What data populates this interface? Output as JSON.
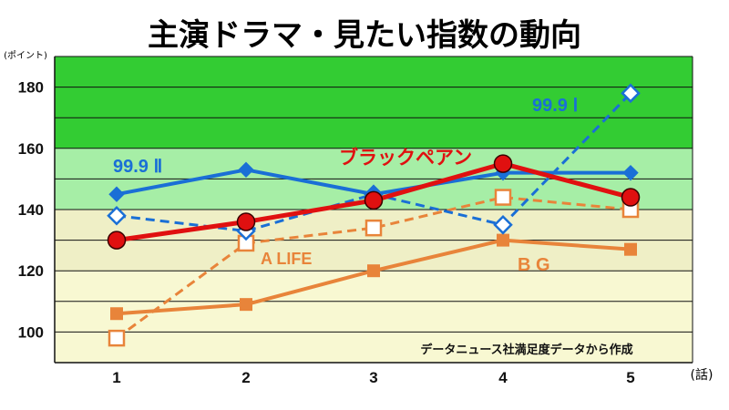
{
  "chart_data": {
    "type": "line",
    "title": "主演ドラマ・見たい指数の動向",
    "ylabel": "(ポイント)",
    "xlabel": "(話)",
    "note": "データニュース社満足度データから作成",
    "categories": [
      "1",
      "2",
      "3",
      "4",
      "5"
    ],
    "ylim": [
      90,
      190
    ],
    "yticks": [
      100,
      120,
      140,
      160,
      180
    ],
    "bands": [
      {
        "from": 160,
        "to": 190,
        "color": "#33cc33"
      },
      {
        "from": 140,
        "to": 160,
        "color": "#a6eea6"
      },
      {
        "from": 120,
        "to": 140,
        "color": "#efefc6"
      },
      {
        "from": 90,
        "to": 120,
        "color": "#f8f8d2"
      }
    ],
    "grid": true,
    "series": [
      {
        "name": "99.9 Ⅰ",
        "color": "#1a6fd6",
        "style": "dashed",
        "marker": "diamond-open",
        "values": [
          138,
          133,
          145,
          135,
          178
        ]
      },
      {
        "name": "99.9 Ⅱ",
        "color": "#1a6fd6",
        "style": "solid",
        "marker": "diamond-filled",
        "values": [
          145,
          153,
          145,
          152,
          152
        ]
      },
      {
        "name": "ブラックペアン",
        "color": "#e01010",
        "style": "solid",
        "marker": "circle",
        "values": [
          130,
          136,
          143,
          155,
          144
        ]
      },
      {
        "name": "A LIFE",
        "color": "#e8843a",
        "style": "dashed",
        "marker": "square-open",
        "values": [
          98,
          129,
          134,
          144,
          140
        ]
      },
      {
        "name": "B G",
        "color": "#e8843a",
        "style": "solid",
        "marker": "square-filled",
        "values": [
          106,
          109,
          120,
          130,
          127
        ]
      }
    ]
  }
}
